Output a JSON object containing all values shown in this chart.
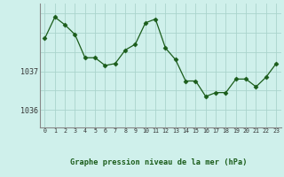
{
  "x": [
    0,
    1,
    2,
    3,
    4,
    5,
    6,
    7,
    8,
    9,
    10,
    11,
    12,
    13,
    14,
    15,
    16,
    17,
    18,
    19,
    20,
    21,
    22,
    23
  ],
  "y": [
    1037.85,
    1038.4,
    1038.2,
    1037.95,
    1037.35,
    1037.35,
    1037.15,
    1037.2,
    1037.55,
    1037.7,
    1038.25,
    1038.35,
    1037.6,
    1037.3,
    1036.75,
    1036.75,
    1036.35,
    1036.45,
    1036.45,
    1036.8,
    1036.8,
    1036.6,
    1036.85,
    1037.2
  ],
  "line_color": "#1a5c1a",
  "marker": "D",
  "marker_size": 2.5,
  "bg_color": "#cff0eb",
  "grid_color": "#aad4cc",
  "ylabel_ticks": [
    1036,
    1037
  ],
  "xlabel_label": "Graphe pression niveau de la mer (hPa)",
  "xlim": [
    -0.5,
    23.5
  ],
  "ylim": [
    1035.55,
    1038.75
  ],
  "axis_color": "#888888",
  "label_color": "#1a5c1a"
}
